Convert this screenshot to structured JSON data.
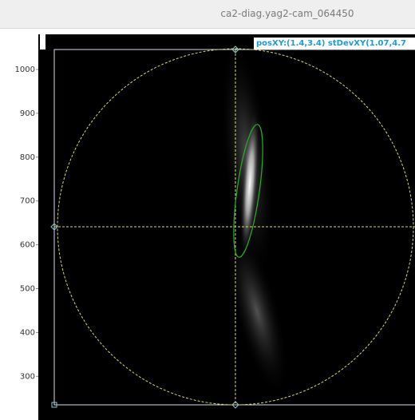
{
  "window": {
    "title": "ca2-diag.yag2-cam_064450"
  },
  "overlay": {
    "stats": "posXY:(1.4,3.4) stDevXY(1.07,4.7"
  },
  "axis": {
    "yticks": [
      1000,
      900,
      800,
      700,
      600,
      500,
      400,
      300
    ]
  }
}
